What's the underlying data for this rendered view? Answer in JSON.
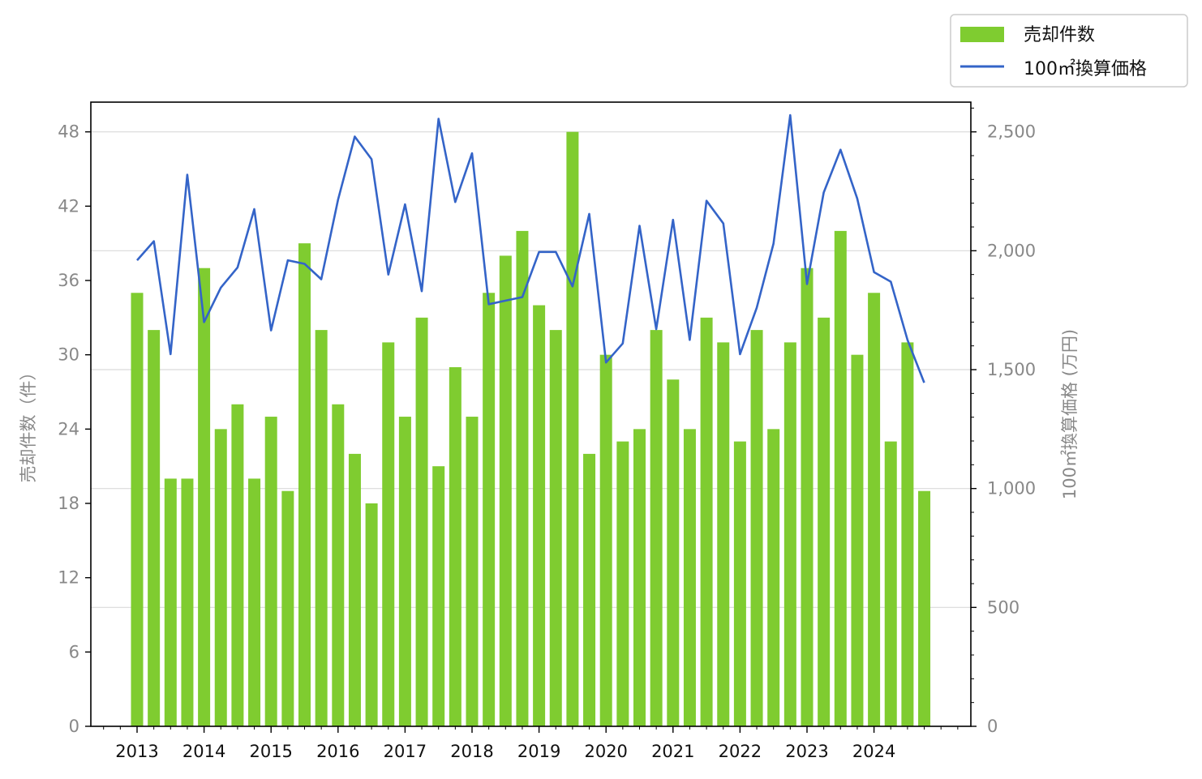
{
  "chart_data": {
    "type": "bar",
    "colors": {
      "bar": "#7fcc30",
      "line": "#3464c8",
      "grid": "#d9d9d9"
    },
    "x_tick_labels": [
      "2013",
      "2014",
      "2015",
      "2016",
      "2017",
      "2018",
      "2019",
      "2020",
      "2021",
      "2022",
      "2023",
      "2024"
    ],
    "y_left": {
      "label": "売却件数（件）",
      "ylim": [
        0,
        50.4
      ],
      "ticks": [
        0,
        6,
        12,
        18,
        24,
        30,
        36,
        42,
        48
      ]
    },
    "y_right": {
      "label": "100㎡換算価格 (万円)",
      "ylim": [
        0,
        2625
      ],
      "ticks": [
        0,
        500,
        1000,
        1500,
        2000,
        2500
      ],
      "tick_labels": [
        "0",
        "500",
        "1,000",
        "1,500",
        "2,000",
        "2,500"
      ]
    },
    "grid": "horizontal (right axis)",
    "legend": {
      "placement": "top-right, outside plot",
      "entries": [
        "売却件数",
        "100㎡換算価格"
      ]
    },
    "series": [
      {
        "name": "売却件数",
        "type": "bar",
        "axis": "left",
        "values": [
          35,
          32,
          20,
          20,
          37,
          24,
          26,
          20,
          25,
          19,
          39,
          32,
          26,
          22,
          18,
          31,
          25,
          33,
          21,
          29,
          25,
          35,
          38,
          40,
          34,
          32,
          48,
          22,
          30,
          23,
          24,
          32,
          28,
          24,
          33,
          31,
          23,
          32,
          24,
          31,
          37,
          33,
          40,
          30,
          35,
          23,
          31,
          19
        ]
      },
      {
        "name": "100㎡換算価格",
        "type": "line",
        "axis": "right",
        "values": [
          1960,
          2040,
          1565,
          2320,
          1700,
          1845,
          1930,
          2175,
          1665,
          1960,
          1945,
          1880,
          2215,
          2480,
          2385,
          1900,
          2195,
          1830,
          2555,
          2205,
          2410,
          1775,
          1790,
          1805,
          1995,
          1995,
          1850,
          2155,
          1530,
          1610,
          2105,
          1670,
          2130,
          1625,
          2210,
          2115,
          1565,
          1760,
          2030,
          2570,
          1860,
          2245,
          2425,
          2220,
          1910,
          1870,
          1625,
          1445
        ]
      }
    ]
  }
}
